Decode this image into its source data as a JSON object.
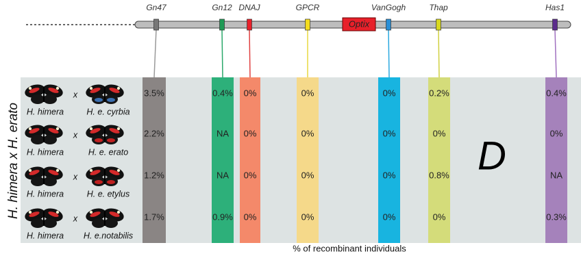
{
  "markers": [
    {
      "label": "Gn47"
    },
    {
      "label": "Gn12"
    },
    {
      "label": "DNAJ"
    },
    {
      "label": "GPCR"
    },
    {
      "label": "VanGogh"
    },
    {
      "label": "Thap"
    },
    {
      "label": "Has1"
    }
  ],
  "optix": "Optix",
  "side_label": "H. himera x H. erato",
  "panel_letter": "D",
  "footer": "% of recombinant individuals",
  "rows": [
    {
      "left": "H. himera",
      "cross": "x",
      "right": "H. e. cyrbia",
      "values": [
        "3.5%",
        "0.4%",
        "0%",
        "0%",
        "0%",
        "0.2%",
        "0.4%"
      ]
    },
    {
      "left": "H. himera",
      "cross": "x",
      "right": "H. e. erato",
      "values": [
        "2.2%",
        "NA",
        "0%",
        "0%",
        "0%",
        "0%",
        "0%"
      ]
    },
    {
      "left": "H. himera",
      "cross": "x",
      "right": "H. e. etylus",
      "values": [
        "1.2%",
        "NA",
        "0%",
        "0%",
        "0%",
        "0.8%",
        "NA"
      ]
    },
    {
      "left": "H. himera",
      "cross": "x",
      "right": "H. e.notabilis",
      "values": [
        "1.7%",
        "0.9%",
        "0%",
        "0%",
        "0%",
        "0%",
        "0.3%"
      ]
    }
  ]
}
